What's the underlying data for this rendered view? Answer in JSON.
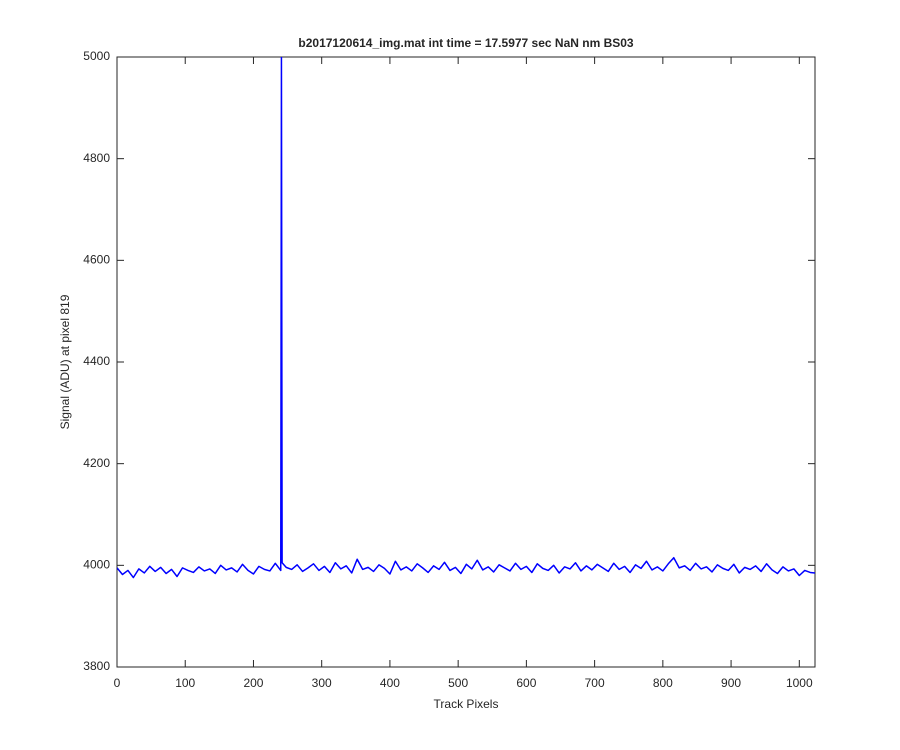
{
  "chart_data": {
    "type": "line",
    "title": "b2017120614_img.mat int time = 17.5977 sec  NaN nm BS03",
    "x_label": "Track Pixels",
    "y_label": "Signal (ADU) at pixel 819",
    "xlim": [
      0,
      1023
    ],
    "ylim": [
      3800,
      5000
    ],
    "xticks": [
      0,
      100,
      200,
      300,
      400,
      500,
      600,
      700,
      800,
      900,
      1000
    ],
    "yticks": [
      3800,
      4000,
      4200,
      4400,
      4600,
      4800,
      5000
    ],
    "grid": false,
    "x": [
      0,
      8,
      16,
      24,
      32,
      40,
      48,
      56,
      64,
      72,
      80,
      88,
      96,
      104,
      112,
      120,
      128,
      136,
      144,
      152,
      160,
      168,
      176,
      184,
      192,
      200,
      208,
      216,
      224,
      232,
      240,
      241,
      242,
      248,
      256,
      264,
      272,
      280,
      288,
      296,
      304,
      312,
      320,
      328,
      336,
      344,
      352,
      360,
      368,
      376,
      384,
      392,
      400,
      408,
      416,
      424,
      432,
      440,
      448,
      456,
      464,
      472,
      480,
      488,
      496,
      504,
      512,
      520,
      528,
      536,
      544,
      552,
      560,
      568,
      576,
      584,
      592,
      600,
      608,
      616,
      624,
      632,
      640,
      648,
      656,
      664,
      672,
      680,
      688,
      696,
      704,
      712,
      720,
      728,
      736,
      744,
      752,
      760,
      768,
      776,
      784,
      792,
      800,
      808,
      816,
      824,
      832,
      840,
      848,
      856,
      864,
      872,
      880,
      888,
      896,
      904,
      912,
      920,
      928,
      936,
      944,
      952,
      960,
      968,
      976,
      984,
      992,
      1000,
      1008,
      1016,
      1023
    ],
    "series": [
      {
        "name": "signal",
        "color": "#0000ff",
        "values": [
          3995,
          3982,
          3990,
          3976,
          3993,
          3985,
          3998,
          3988,
          3996,
          3984,
          3992,
          3978,
          3995,
          3990,
          3986,
          3997,
          3989,
          3993,
          3984,
          4000,
          3991,
          3995,
          3987,
          4002,
          3990,
          3983,
          3998,
          3992,
          3989,
          4004,
          3990,
          5000,
          4005,
          3996,
          3992,
          4001,
          3988,
          3995,
          4003,
          3990,
          3998,
          3986,
          4005,
          3993,
          3999,
          3985,
          4012,
          3992,
          3996,
          3988,
          4001,
          3994,
          3983,
          4008,
          3991,
          3997,
          3989,
          4003,
          3995,
          3986,
          3999,
          3992,
          4006,
          3990,
          3996,
          3984,
          4002,
          3993,
          4010,
          3991,
          3997,
          3987,
          4001,
          3995,
          3989,
          4004,
          3992,
          3998,
          3986,
          4003,
          3994,
          3990,
          4000,
          3985,
          3997,
          3993,
          4005,
          3989,
          3999,
          3991,
          4002,
          3995,
          3988,
          4004,
          3992,
          3998,
          3986,
          4001,
          3994,
          4008,
          3991,
          3997,
          3989,
          4003,
          4015,
          3995,
          3999,
          3990,
          4004,
          3993,
          3997,
          3987,
          4001,
          3994,
          3990,
          4002,
          3985,
          3996,
          3992,
          3999,
          3988,
          4003,
          3991,
          3984,
          3997,
          3989,
          3993,
          3980,
          3990,
          3986,
          3985
        ]
      }
    ]
  }
}
